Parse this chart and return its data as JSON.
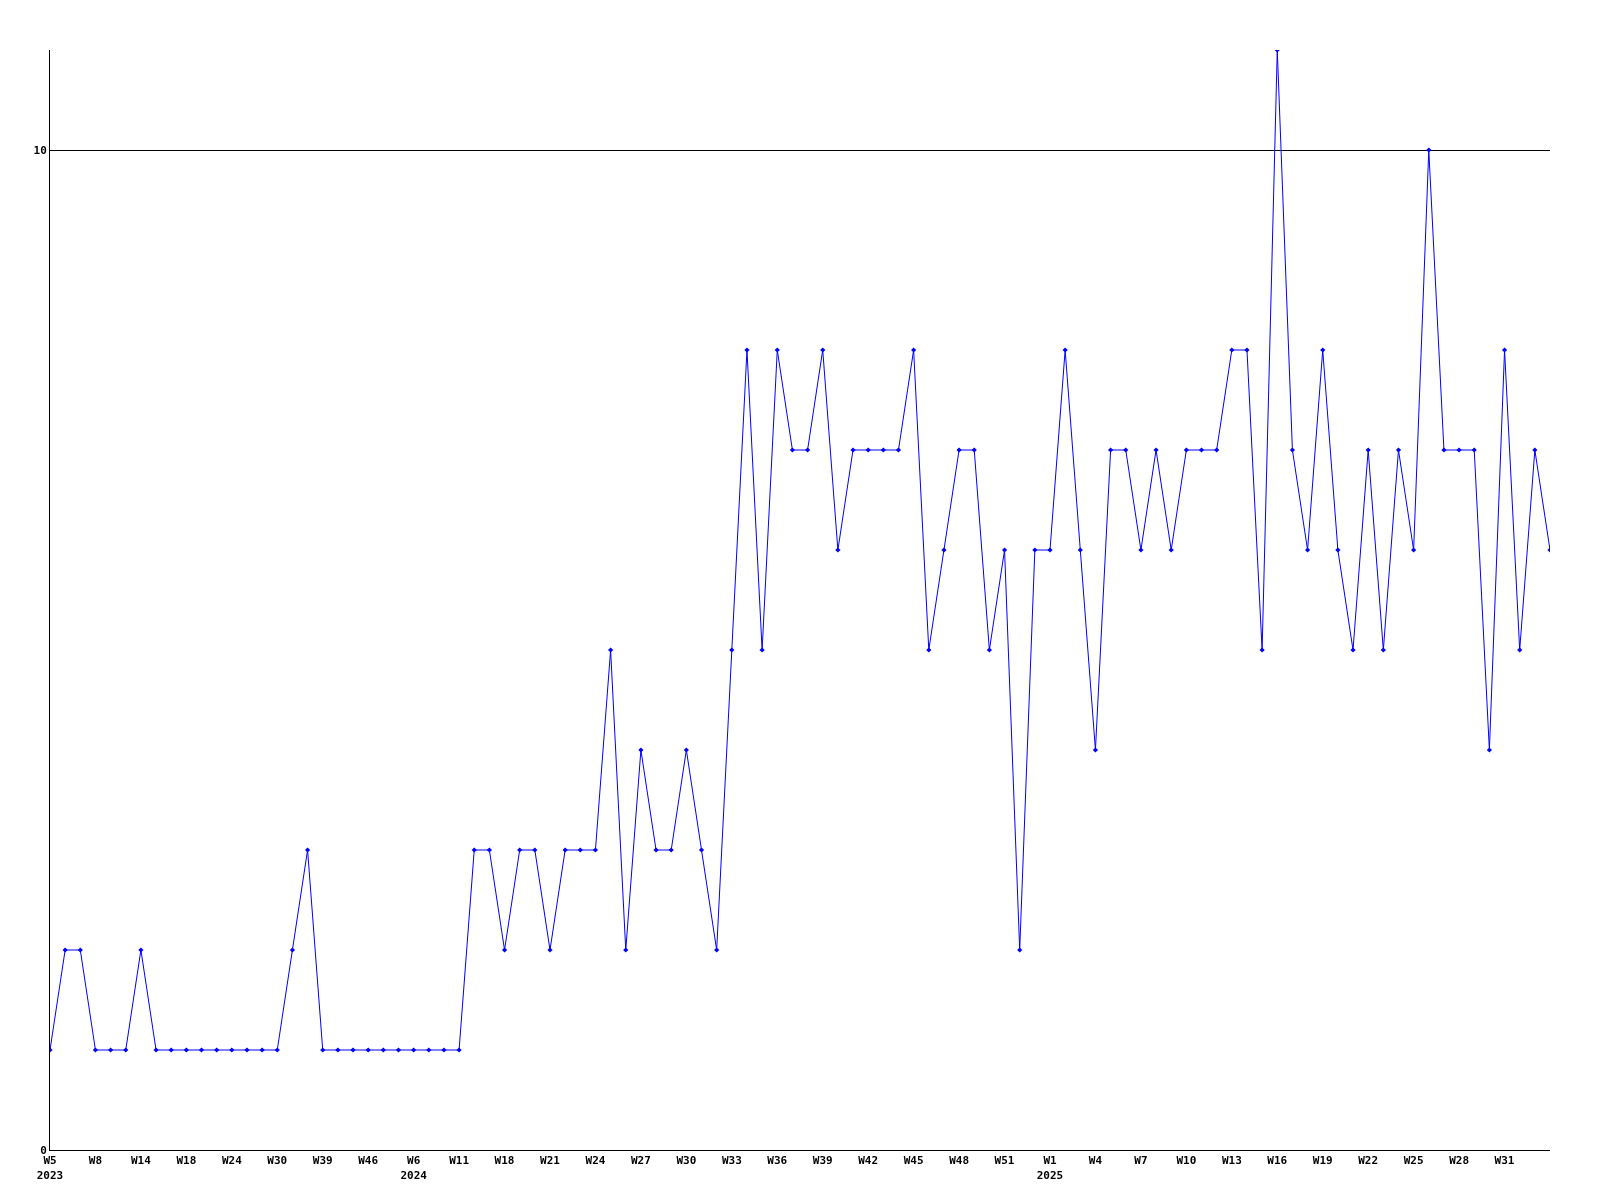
{
  "chart_data": {
    "type": "line",
    "categories": [
      "W5\n2023",
      null,
      null,
      "W8",
      null,
      null,
      "W14",
      null,
      null,
      "W18",
      null,
      null,
      "W24",
      null,
      null,
      "W30",
      null,
      null,
      "W39",
      null,
      null,
      "W46",
      null,
      null,
      "W6\n2024",
      null,
      null,
      "W11",
      null,
      null,
      "W18",
      null,
      null,
      "W21",
      null,
      null,
      "W24",
      null,
      null,
      "W27",
      null,
      null,
      "W30",
      null,
      null,
      "W33",
      null,
      null,
      "W36",
      null,
      null,
      "W39",
      null,
      null,
      "W42",
      null,
      null,
      "W45",
      null,
      null,
      "W48",
      null,
      null,
      "W51",
      null,
      null,
      "W1\n2025",
      null,
      null,
      "W4",
      null,
      null,
      "W7",
      null,
      null,
      "W10",
      null,
      null,
      "W13",
      null,
      null,
      "W16",
      null,
      null,
      "W19",
      null,
      null,
      "W22",
      null,
      null,
      "W25",
      null,
      null,
      "W28",
      null,
      null,
      "W31",
      null,
      null,
      null
    ],
    "series": [
      {
        "color": "#0000ff",
        "values": [
          1,
          2,
          2,
          1,
          1,
          1,
          2,
          1,
          1,
          1,
          1,
          1,
          1,
          1,
          1,
          1,
          2,
          3,
          1,
          1,
          1,
          1,
          1,
          1,
          1,
          1,
          1,
          1,
          3,
          3,
          2,
          3,
          3,
          2,
          3,
          3,
          3,
          5,
          2,
          4,
          3,
          3,
          4,
          3,
          2,
          5,
          8,
          5,
          8,
          7,
          7,
          8,
          6,
          7,
          7,
          7,
          7,
          8,
          5,
          6,
          7,
          7,
          5,
          6,
          2,
          6,
          6,
          8,
          6,
          4,
          7,
          7,
          6,
          7,
          6,
          7,
          7,
          7,
          8,
          8,
          5,
          11,
          7,
          6,
          8,
          6,
          5,
          7,
          5,
          7,
          6,
          10,
          7,
          7,
          7,
          4,
          8,
          5,
          7,
          6
        ]
      }
    ],
    "ylim": [
      0,
      11
    ],
    "yticks": [
      0,
      10
    ],
    "grid": "y",
    "marker": "diamond",
    "line_style": "solid",
    "legend": false
  }
}
